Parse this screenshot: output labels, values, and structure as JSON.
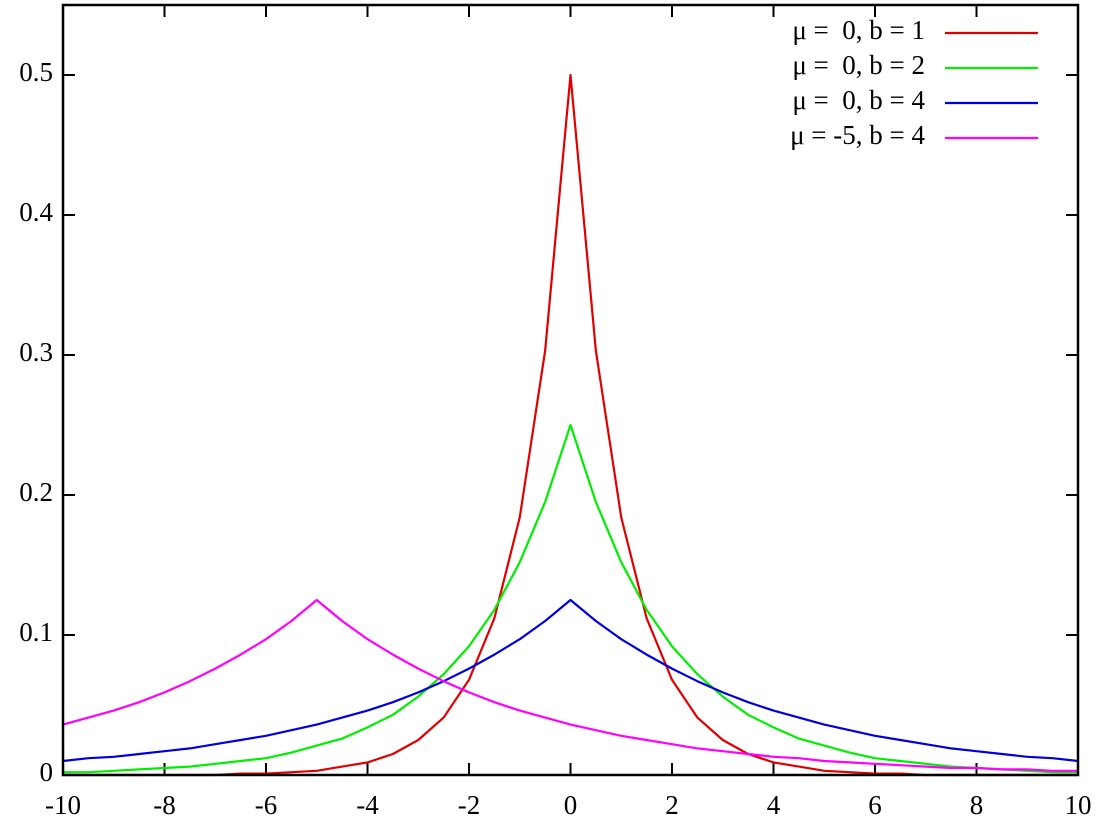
{
  "chart_data": {
    "type": "line",
    "x": [
      -10,
      -9.5,
      -9,
      -8.5,
      -8,
      -7.5,
      -7,
      -6.5,
      -6,
      -5.5,
      -5,
      -4.5,
      -4,
      -3.5,
      -3,
      -2.5,
      -2,
      -1.5,
      -1,
      -0.5,
      0,
      0.5,
      1,
      1.5,
      2,
      2.5,
      3,
      3.5,
      4,
      4.5,
      5,
      5.5,
      6,
      6.5,
      7,
      7.5,
      8,
      8.5,
      9,
      9.5,
      10
    ],
    "series": [
      {
        "name": "μ =  0, b = 1",
        "color": "#e00000",
        "values": [
          0,
          0,
          0,
          0,
          0,
          0,
          0,
          0.001,
          0.001,
          0.002,
          0.003,
          0.006,
          0.009,
          0.015,
          0.025,
          0.041,
          0.068,
          0.112,
          0.184,
          0.303,
          0.5,
          0.303,
          0.184,
          0.112,
          0.068,
          0.041,
          0.025,
          0.015,
          0.009,
          0.006,
          0.003,
          0.002,
          0.001,
          0.001,
          0,
          0,
          0,
          0,
          0,
          0,
          0
        ]
      },
      {
        "name": "μ =  0, b = 2",
        "color": "#00ee00",
        "values": [
          0.002,
          0.002,
          0.003,
          0.004,
          0.005,
          0.006,
          0.008,
          0.01,
          0.012,
          0.016,
          0.021,
          0.026,
          0.034,
          0.043,
          0.056,
          0.072,
          0.092,
          0.118,
          0.152,
          0.195,
          0.25,
          0.195,
          0.152,
          0.118,
          0.092,
          0.072,
          0.056,
          0.043,
          0.034,
          0.026,
          0.021,
          0.016,
          0.012,
          0.01,
          0.008,
          0.006,
          0.005,
          0.004,
          0.003,
          0.002,
          0.002
        ]
      },
      {
        "name": "μ =  0, b = 4",
        "color": "#0000dd",
        "values": [
          0.01,
          0.012,
          0.013,
          0.015,
          0.017,
          0.019,
          0.022,
          0.025,
          0.028,
          0.032,
          0.036,
          0.041,
          0.046,
          0.052,
          0.059,
          0.067,
          0.076,
          0.086,
          0.097,
          0.11,
          0.125,
          0.11,
          0.097,
          0.086,
          0.076,
          0.067,
          0.059,
          0.052,
          0.046,
          0.041,
          0.036,
          0.032,
          0.028,
          0.025,
          0.022,
          0.019,
          0.017,
          0.015,
          0.013,
          0.012,
          0.01
        ]
      },
      {
        "name": "μ = -5, b = 4",
        "color": "#ff00ff",
        "values": [
          0.036,
          0.041,
          0.046,
          0.052,
          0.059,
          0.067,
          0.076,
          0.086,
          0.097,
          0.11,
          0.125,
          0.11,
          0.097,
          0.086,
          0.076,
          0.067,
          0.059,
          0.052,
          0.046,
          0.041,
          0.036,
          0.032,
          0.028,
          0.025,
          0.022,
          0.019,
          0.017,
          0.015,
          0.013,
          0.012,
          0.01,
          0.009,
          0.008,
          0.007,
          0.006,
          0.005,
          0.005,
          0.004,
          0.004,
          0.003,
          0.003
        ]
      }
    ],
    "xlim": [
      -10,
      10
    ],
    "xticks": [
      -10,
      -8,
      -6,
      -4,
      -2,
      0,
      2,
      4,
      6,
      8,
      10
    ],
    "ylim": [
      0,
      0.55
    ],
    "yticks": [
      0,
      0.1,
      0.2,
      0.3,
      0.4,
      0.5
    ],
    "legend": "top-right",
    "grid": false
  }
}
